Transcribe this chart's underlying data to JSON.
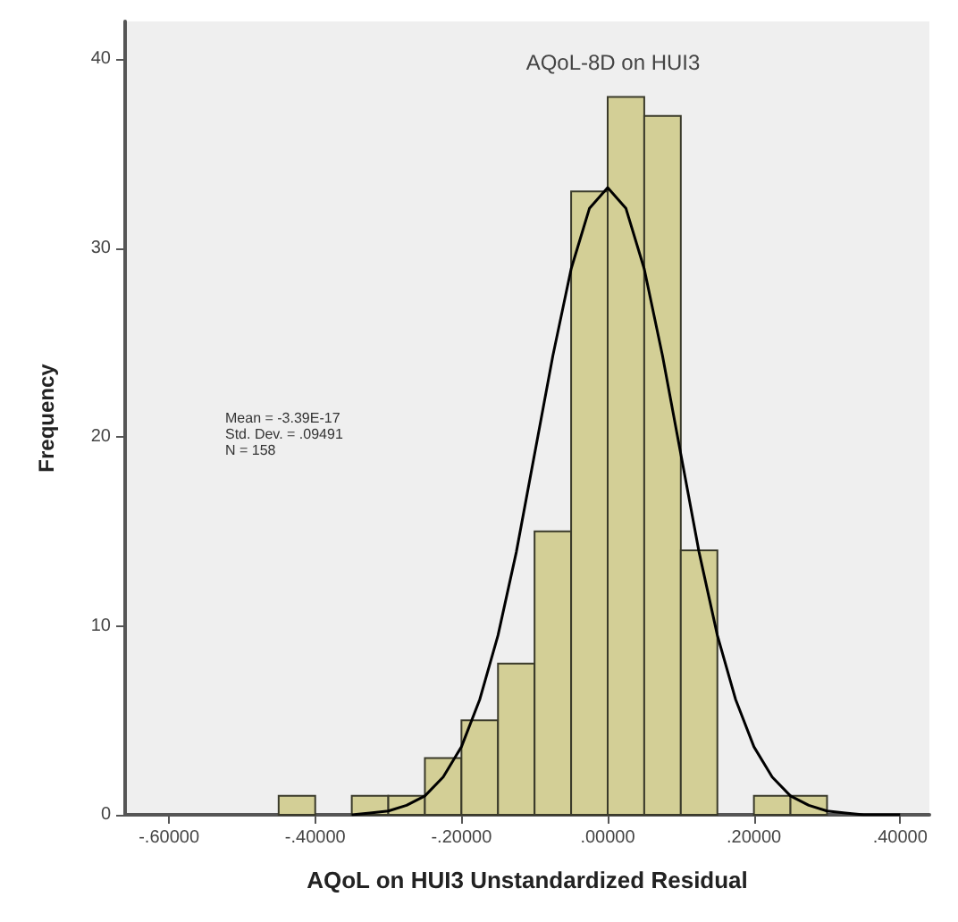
{
  "chart_data": {
    "type": "histogram",
    "title": "AQoL-8D on HUI3",
    "xlabel": "AQoL on HUI3 Unstandardized Residual",
    "ylabel": "Frequency",
    "bins": [
      -0.45,
      -0.4,
      -0.35,
      -0.3,
      -0.25,
      -0.2,
      -0.15,
      -0.1,
      -0.05,
      0,
      0.05,
      0.1,
      0.15,
      0.2,
      0.25,
      0.3
    ],
    "values": [
      1,
      0,
      1,
      1,
      3,
      5,
      8,
      15,
      33,
      38,
      37,
      14,
      0,
      1,
      1
    ],
    "color": "#d3cf96",
    "series": [
      {
        "type": "line",
        "color": "#000000",
        "x": [
          -0.35,
          -0.325,
          -0.3,
          -0.275,
          -0.25,
          -0.225,
          -0.2,
          -0.175,
          -0.15,
          -0.125,
          -0.1,
          -0.075,
          -0.05,
          -0.025,
          0,
          0.025,
          0.05,
          0.075,
          0.1,
          0.125,
          0.15,
          0.175,
          0.2,
          0.225,
          0.25,
          0.275,
          0.3,
          0.325,
          0.35,
          0.375,
          0.4
        ],
        "values": [
          0,
          0.1,
          0.2,
          0.5,
          1,
          2,
          3.6,
          6.1,
          9.5,
          13.9,
          19.1,
          24.3,
          28.9,
          32.1,
          33.2,
          32.1,
          28.9,
          24.3,
          19.1,
          13.9,
          9.5,
          6.1,
          3.6,
          2,
          1,
          0.5,
          0.2,
          0.1,
          0,
          0,
          0
        ]
      }
    ],
    "annotations": [
      "Mean = -3.39E-17",
      "Std. Dev. = .09491",
      "N = 158"
    ],
    "xlim": [
      -0.66,
      0.44
    ],
    "xticks": [
      {
        "value": -0.6,
        "label": "-.60000"
      },
      {
        "value": -0.4,
        "label": "-.40000"
      },
      {
        "value": -0.2,
        "label": "-.20000"
      },
      {
        "value": 0,
        "label": ".00000"
      },
      {
        "value": 0.2,
        "label": ".20000"
      },
      {
        "value": 0.4,
        "label": ".40000"
      }
    ],
    "ylim": [
      0,
      42
    ],
    "yticks": [
      0,
      10,
      20,
      30,
      40
    ],
    "grid": false
  }
}
